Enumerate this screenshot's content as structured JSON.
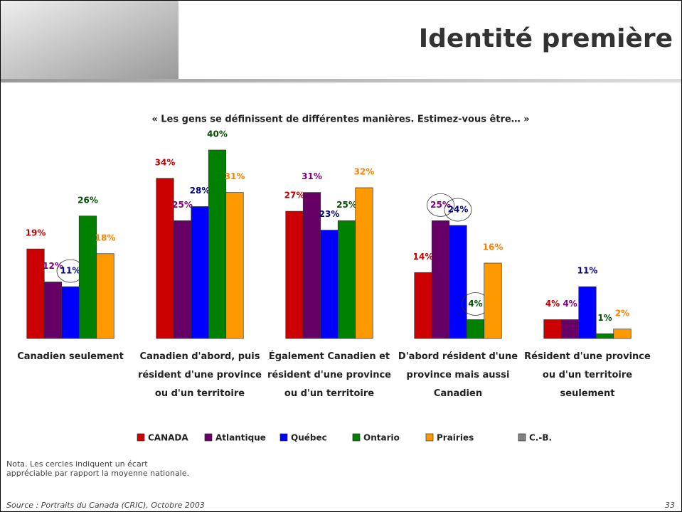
{
  "header": {
    "title": "Identité première"
  },
  "chart_data": {
    "type": "bar",
    "subtitle": "« Les gens se définissent de différentes manières.  Estimez-vous être… »",
    "categories": [
      "Canadien seulement",
      "Canadien d'abord, puis résident d'une province ou d'un territoire",
      "Également Canadien et résident d'une province ou d'un territoire",
      "D'abord résident d'une province mais aussi Canadien",
      "Résident d'une province ou d'un territoire seulement"
    ],
    "series": [
      {
        "name": "CANADA",
        "color": "#cc0000",
        "label_color": "#c00000",
        "values": [
          19,
          34,
          27,
          14,
          4
        ],
        "value_labels": [
          "19%",
          "34%",
          "27%",
          "14%",
          "4%"
        ]
      },
      {
        "name": "Atlantique",
        "color": "#660066",
        "label_color": "#800080",
        "values": [
          12,
          25,
          31,
          25,
          4
        ],
        "value_labels": [
          "12%",
          "25%",
          "31%",
          "25%",
          "4%"
        ]
      },
      {
        "name": "Québec",
        "color": "#0000ff",
        "label_color": "#000080",
        "values": [
          11,
          28,
          23,
          24,
          11
        ],
        "value_labels": [
          "11%",
          "28%",
          "23%",
          "24%",
          "11%"
        ]
      },
      {
        "name": "Ontario",
        "color": "#008000",
        "label_color": "#005000",
        "values": [
          26,
          40,
          25,
          4,
          1
        ],
        "value_labels": [
          "26%",
          "40%",
          "25%",
          "4%",
          "1%"
        ]
      },
      {
        "name": "Prairies",
        "color": "#ff9900",
        "label_color": "#ff8000",
        "values": [
          18,
          31,
          32,
          16,
          2
        ],
        "value_labels": [
          "18%",
          "31%",
          "32%",
          "16%",
          "2%"
        ]
      },
      {
        "name": "C.-B.",
        "color": "#808080",
        "label_color": "#808080",
        "values": [
          null,
          null,
          null,
          null,
          null
        ]
      }
    ]
  },
  "note": "Nota. Les cercles indiquent un écart appréciable par rapport la moyenne nationale.",
  "footer": {
    "source": "Source : Portraits du Canada (CRIC), Octobre 2003",
    "page": "33"
  }
}
